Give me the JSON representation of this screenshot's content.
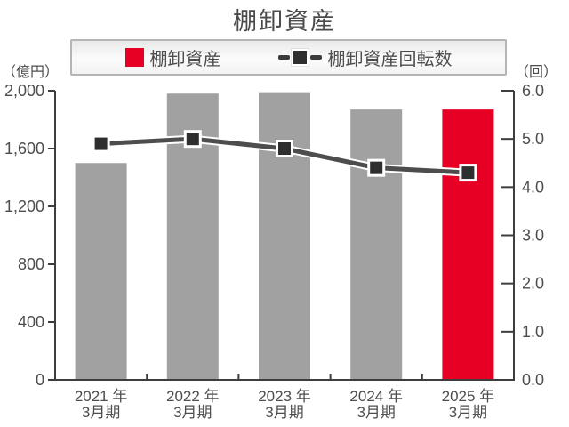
{
  "title": "棚卸資産",
  "legend": {
    "bar_label": "棚卸資産",
    "line_label": "棚卸資産回転数"
  },
  "left_axis_unit": "（億円）",
  "right_axis_unit": "（回）",
  "colors": {
    "bar_gray": "#a1a1a1",
    "bar_red": "#e60023",
    "line": "#4d4d4d",
    "line_casing": "#ffffff",
    "marker": "#2e2e2e",
    "marker_border": "#ffffff",
    "axis": "#3d3d3d",
    "text": "#4d4d4d"
  },
  "chart_data": {
    "type": "combo-bar-line",
    "title": "棚卸資産",
    "categories": [
      {
        "year": "2021 年",
        "period": "3月期"
      },
      {
        "year": "2022 年",
        "period": "3月期"
      },
      {
        "year": "2023 年",
        "period": "3月期"
      },
      {
        "year": "2024 年",
        "period": "3月期"
      },
      {
        "year": "2025 年",
        "period": "3月期"
      }
    ],
    "series": [
      {
        "name": "棚卸資産",
        "type": "bar",
        "axis": "left",
        "unit": "億円",
        "values": [
          1500,
          1980,
          1990,
          1870,
          1870
        ],
        "colors": [
          "#a1a1a1",
          "#a1a1a1",
          "#a1a1a1",
          "#a1a1a1",
          "#e60023"
        ]
      },
      {
        "name": "棚卸資産回転数",
        "type": "line",
        "axis": "right",
        "unit": "回",
        "values": [
          4.9,
          5.0,
          4.8,
          4.4,
          4.3
        ]
      }
    ],
    "left_axis": {
      "min": 0,
      "max": 2000,
      "tick_step": 400,
      "tick_labels": [
        "0",
        "400",
        "800",
        "1,200",
        "1,600",
        "2,000"
      ]
    },
    "right_axis": {
      "min": 0,
      "max": 6,
      "tick_step": 1,
      "tick_labels": [
        "0.0",
        "1.0",
        "2.0",
        "3.0",
        "4.0",
        "5.0",
        "6.0"
      ]
    },
    "grid": false,
    "legend_position": "top"
  }
}
